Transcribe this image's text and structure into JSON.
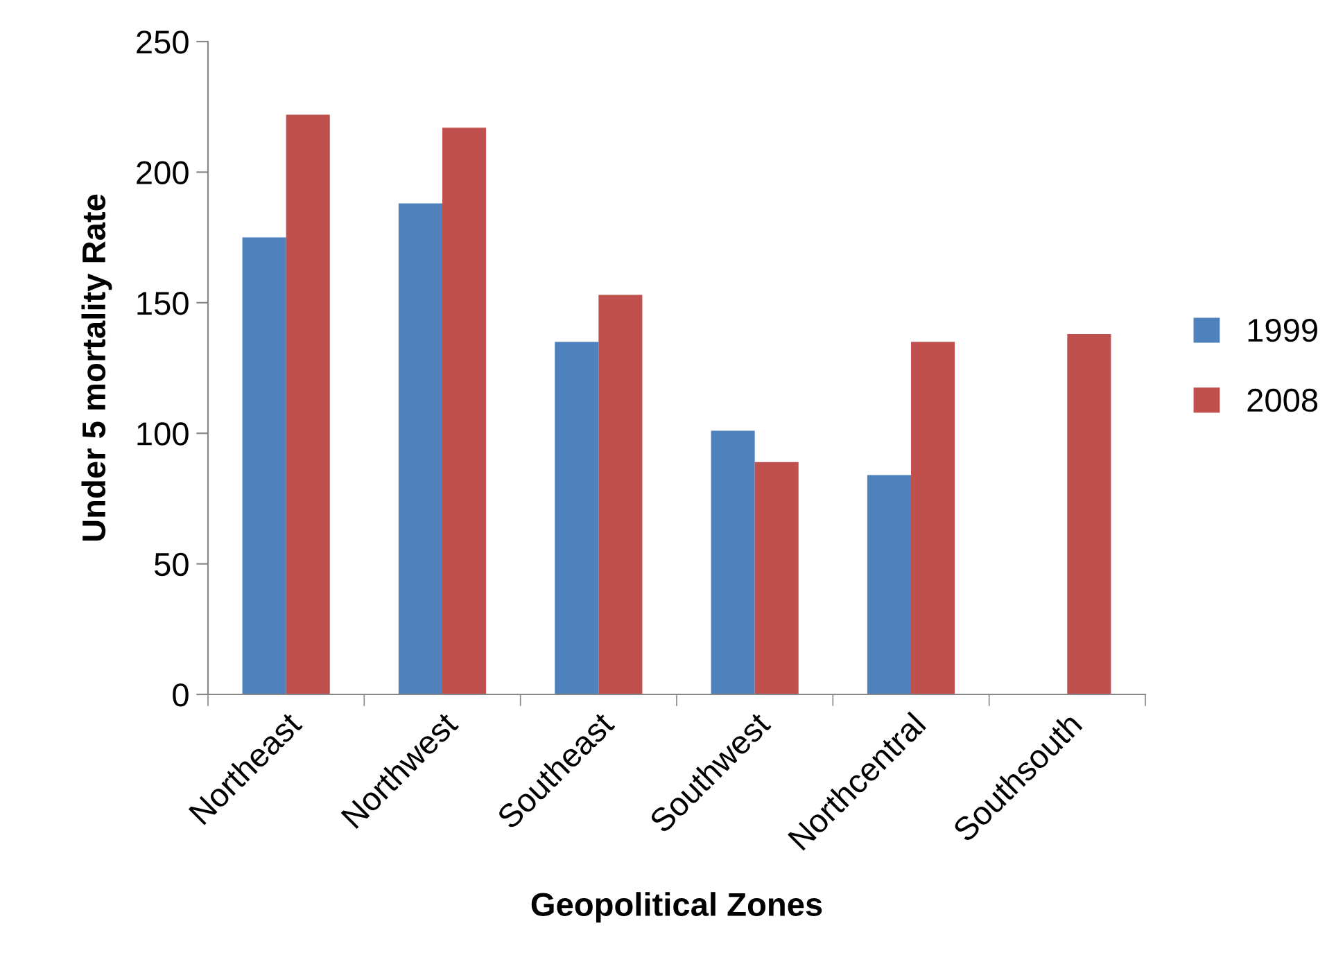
{
  "chart_data": {
    "type": "bar",
    "xlabel": "Geopolitical Zones",
    "ylabel": "Under 5 mortality Rate",
    "categories": [
      "Northeast",
      "Northwest",
      "Southeast",
      "Southwest",
      "Northcentral",
      "Southsouth"
    ],
    "series": [
      {
        "name": "1999",
        "color": "#4f81bd",
        "values": [
          175,
          188,
          135,
          101,
          84,
          null
        ]
      },
      {
        "name": "2008",
        "color": "#c0504d",
        "values": [
          222,
          217,
          153,
          89,
          135,
          138
        ]
      }
    ],
    "ylim": [
      0,
      250
    ],
    "yticks": [
      0,
      50,
      100,
      150,
      200,
      250
    ],
    "grid": false,
    "legend": "right"
  }
}
